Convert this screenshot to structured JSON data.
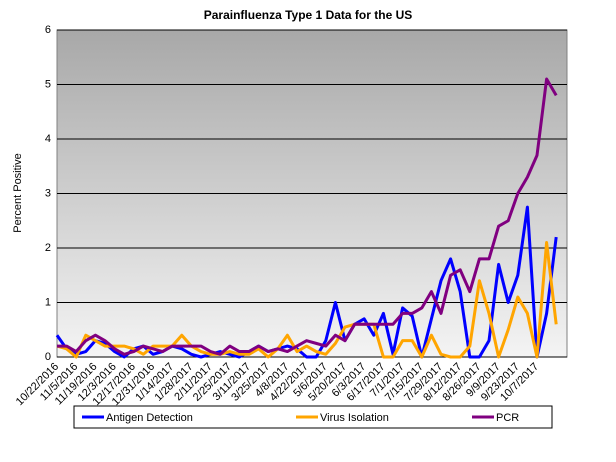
{
  "chart_data": {
    "type": "line",
    "title": "Parainfluenza Type 1 Data for the US",
    "y_label": "Percent Positive",
    "categories": [
      "10/22/2016",
      null,
      "11/5/2016",
      null,
      "11/19/2016",
      null,
      "12/3/2016",
      null,
      "12/17/2016",
      null,
      "12/31/2016",
      null,
      "1/14/2017",
      null,
      "1/28/2017",
      null,
      "2/11/2017",
      null,
      "2/25/2017",
      null,
      "3/11/2017",
      null,
      "3/25/2017",
      null,
      "4/8/2017",
      null,
      "4/22/2017",
      null,
      "5/6/2017",
      null,
      "5/20/2017",
      null,
      "6/3/2017",
      null,
      "6/17/2017",
      null,
      "7/1/2017",
      null,
      "7/15/2017",
      null,
      "7/29/2017",
      null,
      "8/12/2017",
      null,
      "8/26/2017",
      null,
      "9/9/2017",
      null,
      "9/23/2017",
      null,
      "10/7/2017",
      null,
      null
    ],
    "series": [
      {
        "name": "Antigen Detection",
        "color": "#0000ff",
        "values": [
          0.4,
          0.15,
          0.05,
          0.1,
          0.3,
          0.25,
          0.1,
          0.0,
          0.15,
          0.2,
          0.05,
          0.1,
          0.2,
          0.15,
          0.05,
          0.0,
          0.05,
          0.1,
          0.05,
          0.0,
          0.1,
          0.2,
          0.1,
          0.15,
          0.2,
          0.15,
          0.0,
          0.0,
          0.3,
          1.0,
          0.3,
          0.6,
          0.7,
          0.4,
          0.8,
          0.05,
          0.9,
          0.75,
          0.0,
          0.7,
          1.4,
          1.8,
          1.2,
          0.0,
          0.0,
          0.3,
          1.7,
          1.0,
          1.5,
          2.75,
          0.0,
          0.8,
          2.2
        ]
      },
      {
        "name": "Virus Isolation",
        "color": "#ffa500",
        "values": [
          0.2,
          0.15,
          0.0,
          0.4,
          0.3,
          0.2,
          0.2,
          0.2,
          0.15,
          0.05,
          0.2,
          0.2,
          0.2,
          0.4,
          0.2,
          0.1,
          0.05,
          0.05,
          0.1,
          0.05,
          0.05,
          0.15,
          0.0,
          0.15,
          0.4,
          0.1,
          0.2,
          0.1,
          0.05,
          0.25,
          0.55,
          0.6,
          0.6,
          0.6,
          0.0,
          0.0,
          0.3,
          0.3,
          0.0,
          0.4,
          0.05,
          0.0,
          0.0,
          0.2,
          1.4,
          0.8,
          0.0,
          0.5,
          1.1,
          0.8,
          0.0,
          2.1,
          0.6
        ]
      },
      {
        "name": "PCR",
        "color": "#800080",
        "values": [
          0.2,
          0.2,
          0.1,
          0.3,
          0.4,
          0.3,
          0.15,
          0.05,
          0.1,
          0.2,
          0.15,
          0.1,
          0.2,
          0.2,
          0.2,
          0.2,
          0.1,
          0.05,
          0.2,
          0.1,
          0.1,
          0.2,
          0.1,
          0.15,
          0.1,
          0.2,
          0.3,
          0.25,
          0.2,
          0.4,
          0.3,
          0.6,
          0.6,
          0.6,
          0.6,
          0.6,
          0.8,
          0.8,
          0.9,
          1.2,
          0.8,
          1.5,
          1.6,
          1.2,
          1.8,
          1.8,
          2.4,
          2.5,
          3.0,
          3.3,
          3.7,
          5.1,
          4.8
        ]
      }
    ],
    "ylim": [
      0,
      6
    ],
    "yticks": [
      0,
      1,
      2,
      3,
      4,
      5,
      6
    ],
    "grid": true,
    "legend": "bottom"
  }
}
